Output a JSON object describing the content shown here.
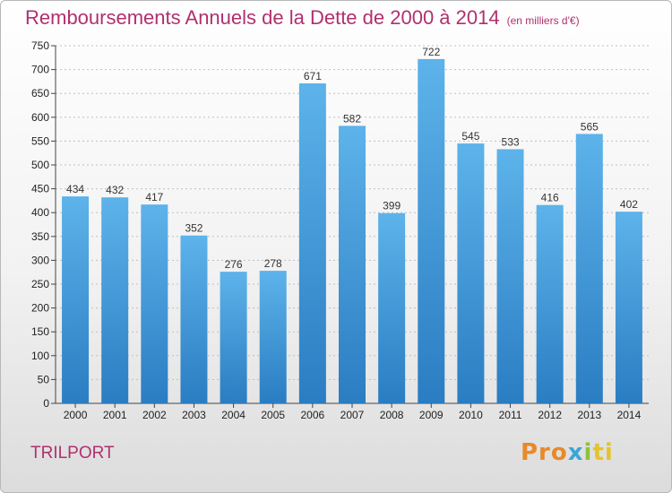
{
  "title": "Remboursements Annuels de la Dette de 2000 à 2014",
  "subtitle": "(en milliers d'€)",
  "city": "TRILPORT",
  "brand": {
    "p1": "Pro",
    "p2": "x",
    "p3": "i",
    "p4": "ti"
  },
  "colors": {
    "title": "#b0306f",
    "bar_top": "#5db3ea",
    "bar_bottom": "#2a7dc2",
    "grid": "#bfbfbf"
  },
  "chart_data": {
    "type": "bar",
    "title": "Remboursements Annuels de la Dette de 2000 à 2014",
    "xlabel": "",
    "ylabel": "",
    "ylim": [
      0,
      750
    ],
    "yticks": [
      0,
      50,
      100,
      150,
      200,
      250,
      300,
      350,
      400,
      450,
      500,
      550,
      600,
      650,
      700,
      750
    ],
    "categories": [
      "2000",
      "2001",
      "2002",
      "2003",
      "2004",
      "2005",
      "2006",
      "2007",
      "2008",
      "2009",
      "2010",
      "2011",
      "2012",
      "2013",
      "2014"
    ],
    "values": [
      434,
      432,
      417,
      352,
      276,
      278,
      671,
      582,
      399,
      722,
      545,
      533,
      416,
      565,
      402
    ],
    "grid": true
  }
}
